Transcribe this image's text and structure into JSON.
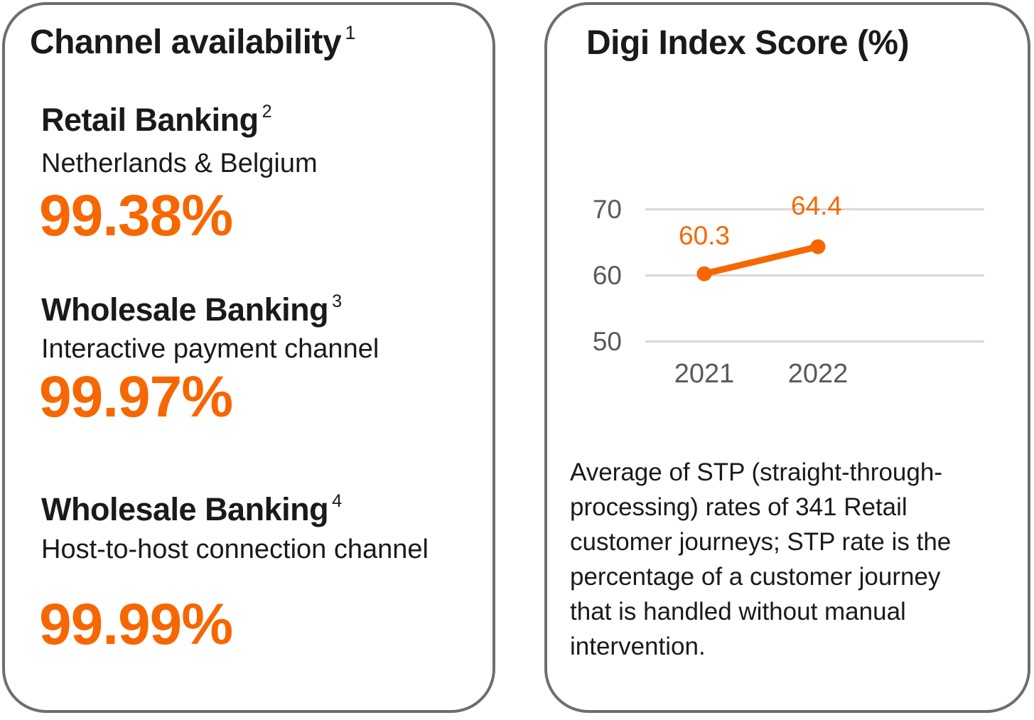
{
  "left_card": {
    "title": "Channel availability",
    "title_footnote": "1",
    "items": [
      {
        "heading": "Retail Banking",
        "footnote": "2",
        "subtitle": "Netherlands & Belgium",
        "value": "99.38%"
      },
      {
        "heading": "Wholesale Banking",
        "footnote": "3",
        "subtitle": "Interactive payment channel",
        "value": "99.97%"
      },
      {
        "heading": "Wholesale Banking",
        "footnote": "4",
        "subtitle": "Host-to-host connection channel",
        "value": "99.99%"
      }
    ]
  },
  "right_card": {
    "title": "Digi Index Score (%)",
    "description": "Average of STP (straight-through-processing) rates of 341 Retail customer journeys; STP rate is the percentage of a customer journey that is handled without manual intervention."
  },
  "chart_data": {
    "type": "line",
    "title": "Digi Index Score (%)",
    "categories": [
      "2021",
      "2022"
    ],
    "values": [
      60.3,
      64.4
    ],
    "data_labels": [
      "60.3",
      "64.4"
    ],
    "yticks": [
      70,
      60,
      50
    ],
    "ylim": [
      45,
      72
    ],
    "grid": true,
    "legend": false,
    "line_color": "#f66702"
  },
  "colors": {
    "accent_orange": "#f66702",
    "card_border_gray": "#6e6e6e",
    "axis_gray": "#595959",
    "gridline_gray": "#d9d9d9",
    "text_black": "#1a1a1a"
  }
}
